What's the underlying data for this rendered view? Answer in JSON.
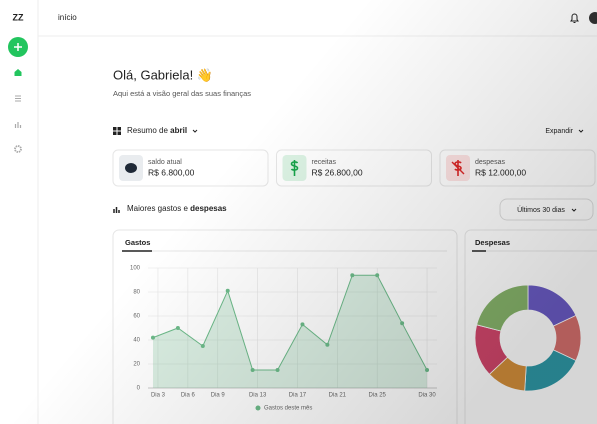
{
  "sidebar": {
    "logo": "ZZ"
  },
  "header": {
    "title": "início"
  },
  "greeting": {
    "title": "Olá, Gabriela! 👋",
    "subtitle": "Aqui está a visão geral das suas finanças"
  },
  "summary": {
    "prefix": "Resumo de ",
    "month": "abril",
    "expand": "Expandir",
    "cards": [
      {
        "label": "saldo atual",
        "value": "R$ 6.800,00"
      },
      {
        "label": "receitas",
        "value": "R$ 26.800,00"
      },
      {
        "label": "despesas",
        "value": "R$ 12.000,00"
      }
    ]
  },
  "section": {
    "prefix": "Maiores gastos e ",
    "bold": "despesas",
    "filter": "Últimos 30 dias"
  },
  "chart_data": [
    {
      "type": "line",
      "title": "Gastos",
      "x": [
        2.5,
        5,
        7.5,
        10,
        12.5,
        15,
        17.5,
        20,
        22.5,
        25,
        27.5,
        30
      ],
      "series": [
        {
          "name": "Gastos deste mês",
          "color": "#6dbb8a",
          "values": [
            42,
            50,
            35,
            81,
            15,
            15,
            53,
            36,
            94,
            94,
            54,
            15
          ]
        }
      ],
      "xlim": [
        2,
        31
      ],
      "xticks": [
        {
          "value": 3,
          "label": "Dia 3"
        },
        {
          "value": 6,
          "label": "Dia 6"
        },
        {
          "value": 9,
          "label": "Dia 9"
        },
        {
          "value": 13,
          "label": "Dia 13"
        },
        {
          "value": 17,
          "label": "Dia 17"
        },
        {
          "value": 21,
          "label": "Dia 21"
        },
        {
          "value": 25,
          "label": "Dia 25"
        },
        {
          "value": 30,
          "label": "Dia 30"
        }
      ],
      "ylim": [
        0,
        100
      ],
      "yticks": [
        0,
        20,
        40,
        60,
        80,
        100
      ],
      "grid": true
    },
    {
      "type": "pie",
      "title": "Despesas",
      "values": [
        18,
        14,
        19,
        12,
        16,
        21
      ],
      "colors": [
        "#6a5bc4",
        "#d46f6c",
        "#2e98a6",
        "#d48f3a",
        "#d1466b",
        "#86b36a"
      ]
    }
  ]
}
